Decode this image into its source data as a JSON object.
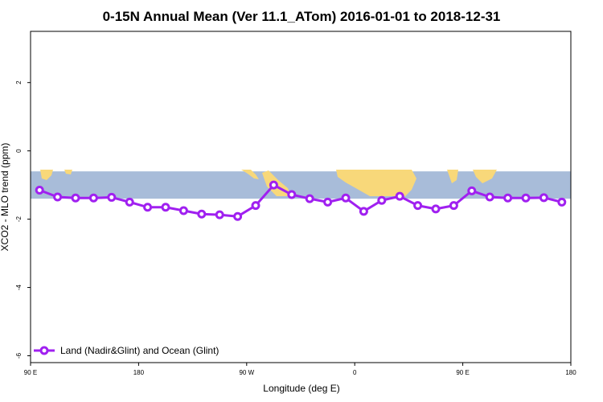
{
  "chart_data": {
    "type": "line",
    "title": "0-15N Annual Mean (Ver 11.1_ATom)   2016-01-01 to 2018-12-31",
    "xlabel": "Longitude (deg E)",
    "ylabel": "XCO2 - MLO trend (ppm)",
    "x_ticks": [
      {
        "value": 90,
        "label": "90 E"
      },
      {
        "value": 180,
        "label": "180"
      },
      {
        "value": 270,
        "label": "90 W"
      },
      {
        "value": 360,
        "label": "0"
      },
      {
        "value": 450,
        "label": "90 E"
      },
      {
        "value": 540,
        "label": "180"
      }
    ],
    "y_ticks": [
      {
        "value": 2,
        "label": "2"
      },
      {
        "value": 0,
        "label": "0"
      },
      {
        "value": -2,
        "label": "-2"
      },
      {
        "value": -4,
        "label": "-4"
      },
      {
        "value": -6,
        "label": "-6"
      }
    ],
    "xlim": [
      90,
      540
    ],
    "ylim": [
      -6.2,
      3.5
    ],
    "latitude_band_ppm": [
      -0.6,
      -1.4
    ],
    "series": [
      {
        "name": "Land (Nadir&Glint) and Ocean (Glint)",
        "color": "#a020f0",
        "x": [
          97.5,
          112.5,
          127.5,
          142.5,
          157.5,
          172.5,
          187.5,
          202.5,
          217.5,
          232.5,
          247.5,
          262.5,
          277.5,
          292.5,
          307.5,
          322.5,
          337.5,
          352.5,
          367.5,
          382.5,
          397.5,
          412.5,
          427.5,
          442.5,
          457.5,
          472.5,
          487.5,
          502.5,
          517.5,
          532.5
        ],
        "values": [
          -1.15,
          -1.35,
          -1.38,
          -1.38,
          -1.36,
          -1.5,
          -1.65,
          -1.65,
          -1.75,
          -1.85,
          -1.87,
          -1.92,
          -1.6,
          -1.0,
          -1.28,
          -1.4,
          -1.5,
          -1.38,
          -1.77,
          -1.45,
          -1.33,
          -1.6,
          -1.7,
          -1.6,
          -1.17,
          -1.35,
          -1.38,
          -1.38,
          -1.37,
          -1.5
        ]
      }
    ],
    "legend_position": "bottom-left"
  },
  "colors": {
    "ocean": "#a8bcd9",
    "land": "#f8d87a",
    "series": "#a020f0"
  }
}
